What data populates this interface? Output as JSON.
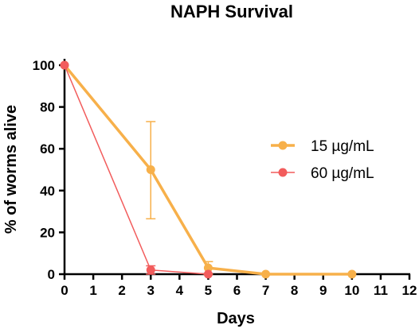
{
  "chart_data": {
    "type": "line",
    "title": "NAPH Survival",
    "xlabel": "Days",
    "ylabel": "% of worms alive",
    "xlim": [
      0,
      12
    ],
    "ylim": [
      0,
      100
    ],
    "xticks": [
      0,
      1,
      2,
      3,
      4,
      5,
      6,
      7,
      8,
      9,
      10,
      11,
      12
    ],
    "yticks": [
      0,
      20,
      40,
      60,
      80,
      100
    ],
    "grid": false,
    "legend_position": "right",
    "series": [
      {
        "name": "15 µg/mL",
        "color": "#F7B04A",
        "line_width": "thick",
        "points": [
          {
            "x": 0,
            "y": 100
          },
          {
            "x": 3,
            "y": 50,
            "error": [
              26.5,
              73
            ]
          },
          {
            "x": 5,
            "y": 3,
            "error": [
              0,
              6
            ]
          },
          {
            "x": 7,
            "y": 0
          },
          {
            "x": 10,
            "y": 0
          }
        ]
      },
      {
        "name": "60 µg/mL",
        "color": "#F25C5C",
        "line_width": "thin",
        "points": [
          {
            "x": 0,
            "y": 100
          },
          {
            "x": 3,
            "y": 2,
            "error": [
              0,
              4
            ]
          },
          {
            "x": 5,
            "y": 0
          }
        ]
      }
    ]
  }
}
